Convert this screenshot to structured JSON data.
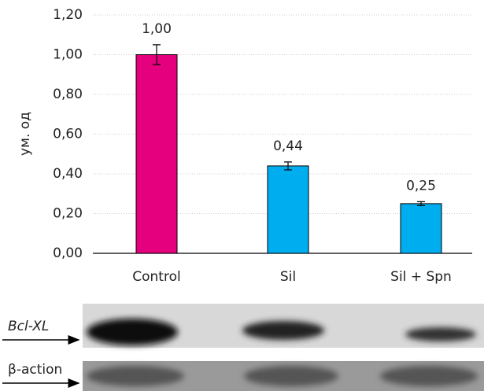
{
  "chart_data": {
    "type": "bar",
    "y_label": "ум. од",
    "categories": [
      "Control",
      "Sil",
      "Sil + Spn"
    ],
    "values": [
      1.0,
      0.44,
      0.25
    ],
    "value_labels": [
      "1,00",
      "0,44",
      "0,25"
    ],
    "errors": [
      0.05,
      0.02,
      0.01
    ],
    "colors": [
      "#e5007d",
      "#00aeef",
      "#00aeef"
    ],
    "ylim": [
      0,
      1.2
    ],
    "yticks": [
      {
        "value": 0,
        "label": "0,00"
      },
      {
        "value": 0.2,
        "label": "0,20"
      },
      {
        "value": 0.4,
        "label": "0,40"
      },
      {
        "value": 0.6,
        "label": "0,60"
      },
      {
        "value": 0.8,
        "label": "0,80"
      },
      {
        "value": 1.0,
        "label": "1,00"
      },
      {
        "value": 1.2,
        "label": "1,20"
      }
    ],
    "grid": true
  },
  "blot": {
    "rows": [
      {
        "label": "Bcl-XL"
      },
      {
        "label": "β-action"
      }
    ]
  }
}
